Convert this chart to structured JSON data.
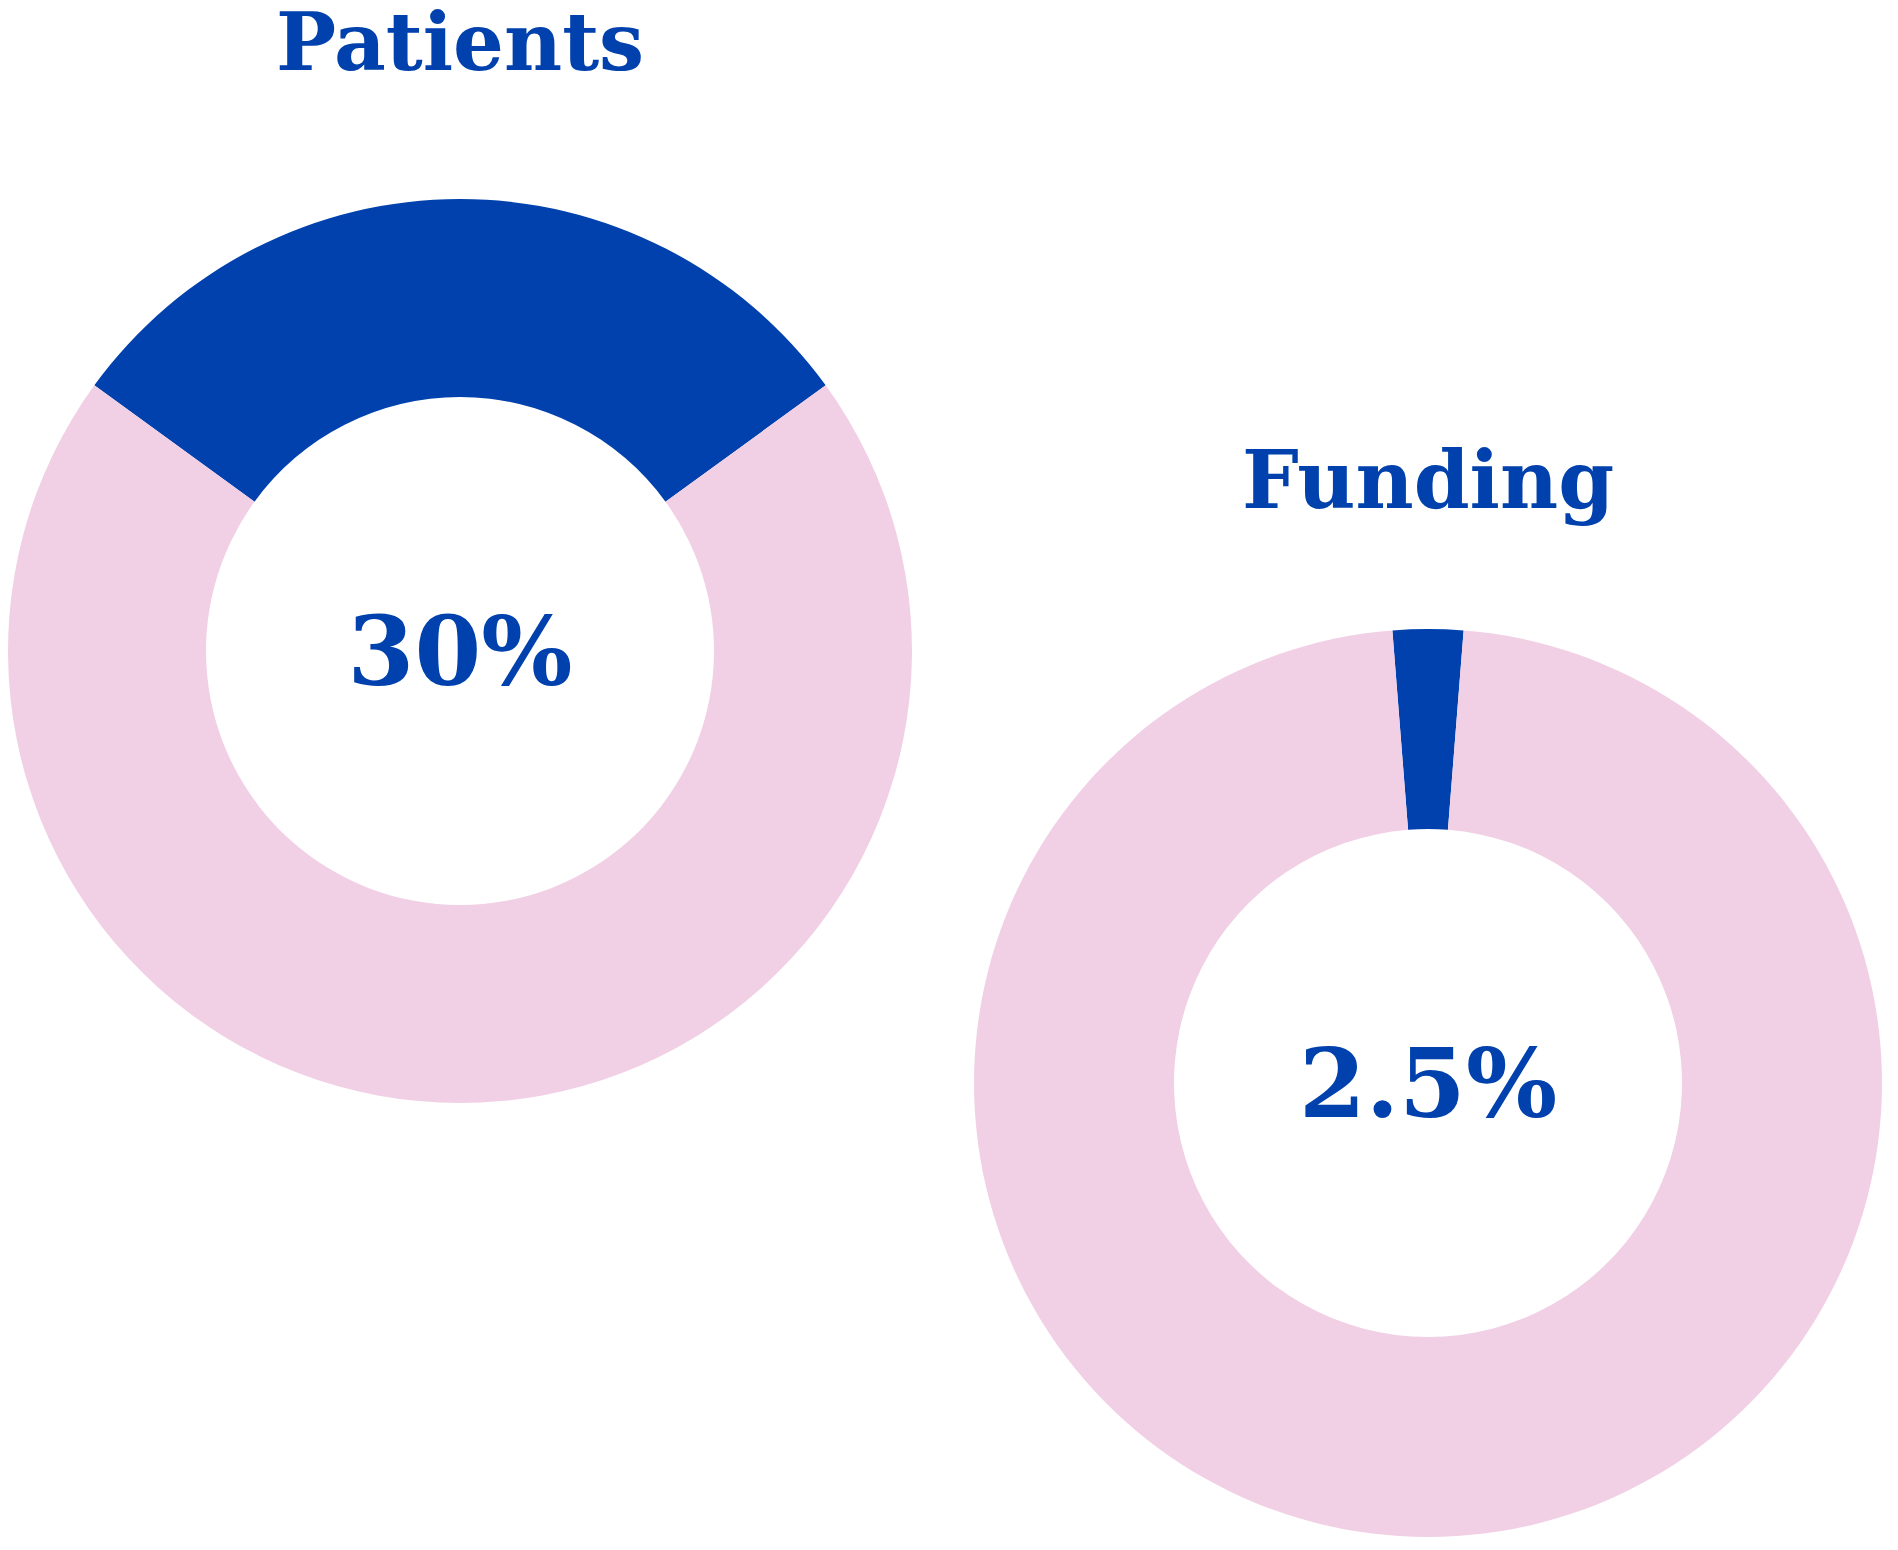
{
  "chart_data": [
    {
      "type": "donut",
      "title": "Patients",
      "categories": [
        null,
        null
      ],
      "values": [
        30,
        70
      ],
      "colors": [
        "#0041ad",
        "#f1d0e5"
      ],
      "annotations": [
        "30%"
      ]
    },
    {
      "type": "donut",
      "title": "Funding",
      "categories": [
        null,
        null
      ],
      "values": [
        2.5,
        97.5
      ],
      "colors": [
        "#0041ad",
        "#f1d0e5"
      ],
      "annotations": [
        "2.5%"
      ]
    }
  ]
}
